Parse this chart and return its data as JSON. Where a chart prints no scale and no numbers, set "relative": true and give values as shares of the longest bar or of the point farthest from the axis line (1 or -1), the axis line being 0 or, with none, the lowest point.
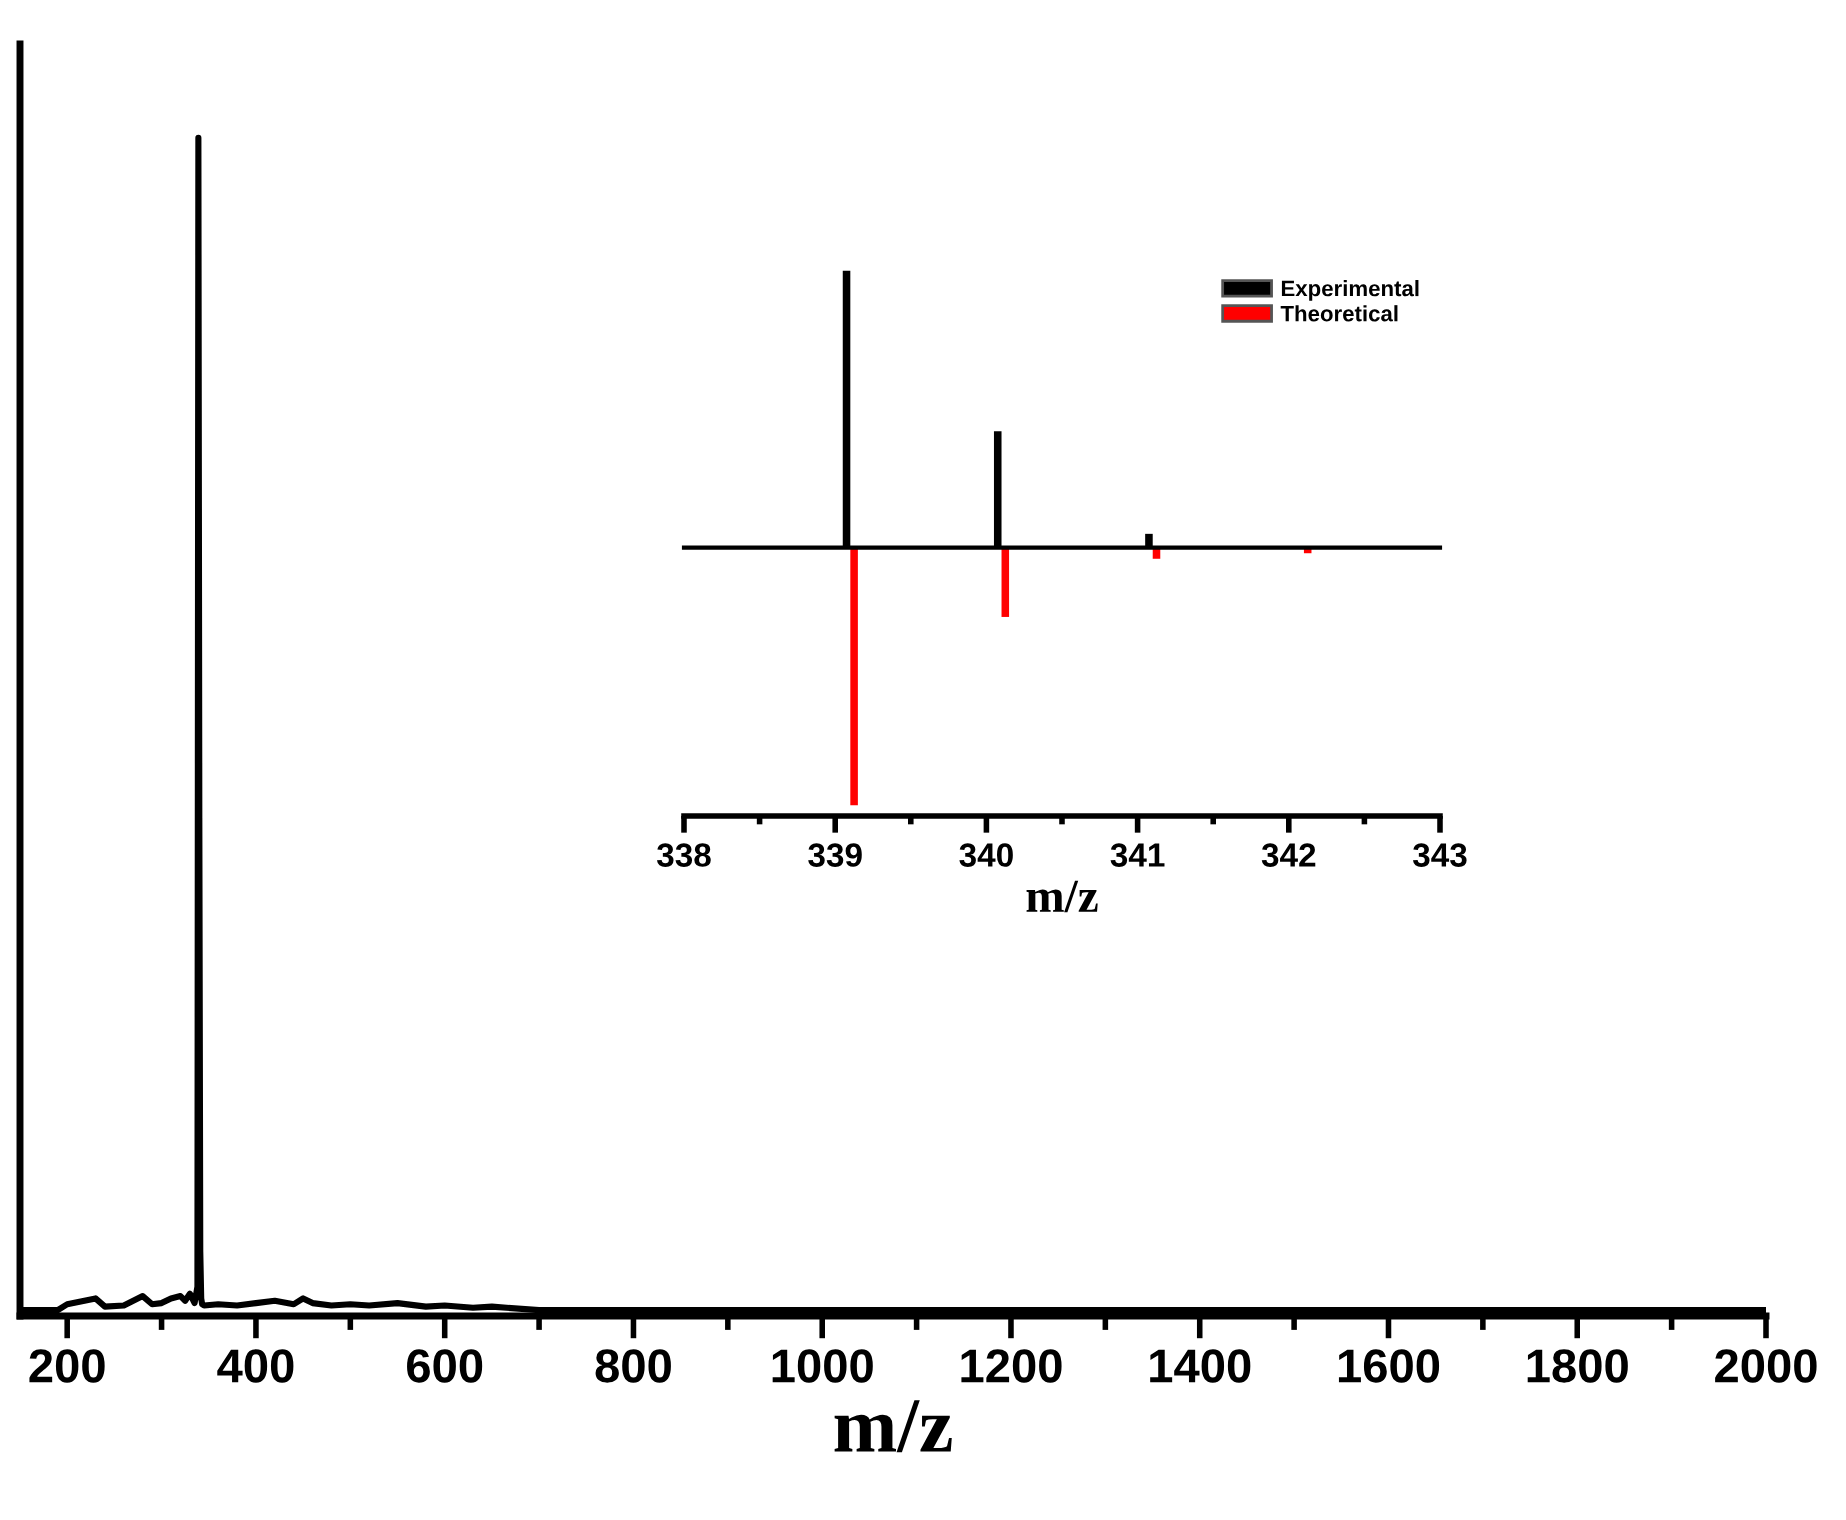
{
  "chart_data": [
    {
      "type": "line",
      "relative": true,
      "xlabel": "m/z",
      "xlim": [
        150,
        2000
      ],
      "xticks": [
        200,
        400,
        600,
        800,
        1000,
        1200,
        1400,
        1600,
        1800,
        2000
      ],
      "grid": false,
      "legend": false,
      "series": [
        {
          "color": "#000000",
          "x": [
            150,
            190,
            200,
            230,
            240,
            260,
            280,
            290,
            300,
            310,
            320,
            325,
            330,
            335,
            338,
            339,
            340,
            341,
            342,
            343,
            345,
            360,
            380,
            400,
            420,
            440,
            450,
            460,
            480,
            500,
            520,
            550,
            580,
            600,
            630,
            650,
            700,
            800,
            1000,
            1500,
            2000
          ],
          "values": [
            0,
            0,
            0.005,
            0.01,
            0.003,
            0.004,
            0.012,
            0.005,
            0.006,
            0.01,
            0.012,
            0.008,
            0.014,
            0.006,
            0.02,
            1,
            0.42,
            0.05,
            0.01,
            0.005,
            0.004,
            0.005,
            0.004,
            0.006,
            0.008,
            0.005,
            0.01,
            0.006,
            0.004,
            0.005,
            0.004,
            0.006,
            0.003,
            0.004,
            0.002,
            0.003,
            0,
            0,
            0,
            0,
            0
          ]
        }
      ]
    },
    {
      "type": "bar",
      "relative": true,
      "xlabel": "m/z",
      "xlim": [
        338,
        343
      ],
      "xticks": [
        338,
        339,
        340,
        341,
        342,
        343
      ],
      "legend": "top right",
      "grid": false,
      "x": [
        339.1,
        340.1,
        341.1,
        342.1
      ],
      "series": [
        {
          "name": "Experimental",
          "color": "#000000",
          "values": [
            1,
            0.42,
            0.05,
            null
          ]
        },
        {
          "name": "Theoretical",
          "color": "#ff0000",
          "values": [
            -0.93,
            -0.25,
            -0.04,
            -0.02
          ]
        }
      ]
    }
  ]
}
